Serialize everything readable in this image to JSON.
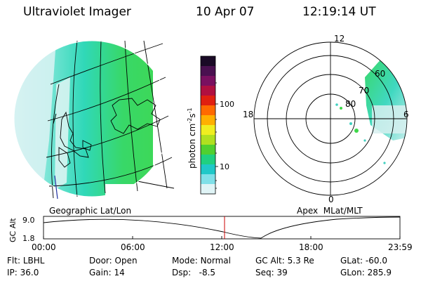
{
  "header": {
    "title": "Ultraviolet Imager",
    "date": "10 Apr 07",
    "time": "12:19:14 UT"
  },
  "colorbar": {
    "unit_label": "photon cm",
    "unit_sup1": "-2",
    "unit_mid": "s",
    "unit_sup2": "-1",
    "ticks": [
      "100",
      "10"
    ],
    "gradient": [
      "#1a0a26",
      "#4a1050",
      "#7a1060",
      "#b01040",
      "#e02010",
      "#ff6a00",
      "#ffb000",
      "#f0ee20",
      "#b0e020",
      "#50d030",
      "#20d080",
      "#20c8c8",
      "#80e0e8",
      "#e0f4f6"
    ]
  },
  "geo_panel": {
    "label": "Geographic Lat/Lon"
  },
  "polar_panel": {
    "label": "Apex  MLat/MLT",
    "mlt_labels": {
      "top": "12",
      "left": "18",
      "right": "6",
      "bottom": "0"
    },
    "lat_labels": [
      "60",
      "70",
      "80"
    ]
  },
  "altitude_plot": {
    "ylabel": "GC Alt",
    "y_ticks": [
      "9.0",
      "1.8"
    ],
    "x_ticks": [
      "00:00",
      "06:00",
      "12:00",
      "18:00",
      "23:59"
    ],
    "marker_time": "12:19"
  },
  "footer": {
    "flt_label": "Flt:",
    "flt_value": "LBHL",
    "ip_label": "IP:",
    "ip_value": "36.0",
    "door_label": "Door:",
    "door_value": "Open",
    "gain_label": "Gain:",
    "gain_value": "14",
    "mode_label": "Mode:",
    "mode_value": "Normal",
    "dsp_label": "Dsp:",
    "dsp_value": "-8.5",
    "gcalt_label": "GC Alt:",
    "gcalt_value": "5.3 Re",
    "seq_label": "Seq:",
    "seq_value": "39",
    "glat_label": "GLat:",
    "glat_value": "-60.0",
    "glon_label": "GLon:",
    "glon_value": "285.9"
  },
  "colors": {
    "grid": "#000000",
    "marker": "#cc0000",
    "green": "#3fd84a",
    "cyan": "#30d8c8"
  }
}
